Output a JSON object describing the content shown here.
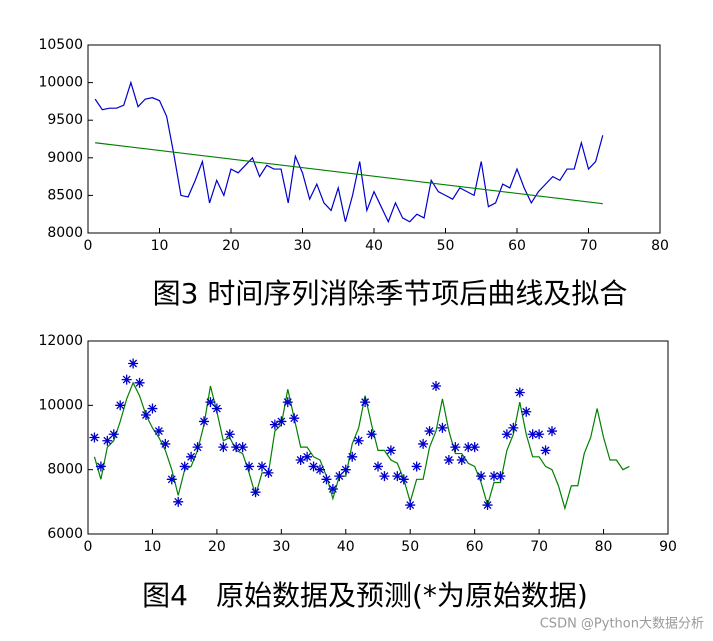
{
  "chart_data": [
    {
      "type": "line",
      "caption": "图3 时间序列消除季节项后曲线及拟合",
      "xlim": [
        0,
        80
      ],
      "ylim": [
        8000,
        10500
      ],
      "xticks": [
        0,
        10,
        20,
        30,
        40,
        50,
        60,
        70,
        80
      ],
      "yticks": [
        8000,
        8500,
        9000,
        9500,
        10000,
        10500
      ],
      "series": [
        {
          "color": "#0000cc",
          "marker": "none",
          "x": [
            1,
            2,
            3,
            4,
            5,
            6,
            7,
            8,
            9,
            10,
            11,
            12,
            13,
            14,
            15,
            16,
            17,
            18,
            19,
            20,
            21,
            22,
            23,
            24,
            25,
            26,
            27,
            28,
            29,
            30,
            31,
            32,
            33,
            34,
            35,
            36,
            37,
            38,
            39,
            40,
            41,
            42,
            43,
            44,
            45,
            46,
            47,
            48,
            49,
            50,
            51,
            52,
            53,
            54,
            55,
            56,
            57,
            58,
            59,
            60,
            61,
            62,
            63,
            64,
            65,
            66,
            67,
            68,
            69,
            70,
            71,
            72
          ],
          "values": [
            9780,
            9640,
            9660,
            9660,
            9700,
            10000,
            9680,
            9780,
            9800,
            9760,
            9550,
            9050,
            8500,
            8480,
            8700,
            8950,
            8400,
            8700,
            8500,
            8850,
            8800,
            8900,
            9000,
            8750,
            8900,
            8850,
            8850,
            8400,
            9020,
            8800,
            8450,
            8650,
            8400,
            8300,
            8600,
            8150,
            8500,
            8950,
            8300,
            8550,
            8350,
            8150,
            8400,
            8200,
            8150,
            8250,
            8200,
            8700,
            8550,
            8500,
            8450,
            8600,
            8550,
            8500,
            8950,
            8350,
            8400,
            8650,
            8600,
            8850,
            8600,
            8400,
            8550,
            8650,
            8750,
            8700,
            8850,
            8850,
            9200,
            8850,
            8950,
            9300
          ]
        },
        {
          "color": "#008000",
          "marker": "none",
          "x": [
            1,
            72
          ],
          "values": [
            9200,
            8390
          ]
        }
      ]
    },
    {
      "type": "line",
      "caption": "图4　原始数据及预测(*为原始数据)",
      "xlim": [
        0,
        90
      ],
      "ylim": [
        6000,
        12000
      ],
      "xticks": [
        0,
        10,
        20,
        30,
        40,
        50,
        60,
        70,
        80,
        90
      ],
      "yticks": [
        6000,
        8000,
        10000,
        12000
      ],
      "series": [
        {
          "color": "#008000",
          "marker": "none",
          "x": [
            1,
            2,
            3,
            4,
            5,
            6,
            7,
            8,
            9,
            10,
            11,
            12,
            13,
            14,
            15,
            16,
            17,
            18,
            19,
            20,
            21,
            22,
            23,
            24,
            25,
            26,
            27,
            28,
            29,
            30,
            31,
            32,
            33,
            34,
            35,
            36,
            37,
            38,
            39,
            40,
            41,
            42,
            43,
            44,
            45,
            46,
            47,
            48,
            49,
            50,
            51,
            52,
            53,
            54,
            55,
            56,
            57,
            58,
            59,
            60,
            61,
            62,
            63,
            64,
            65,
            66,
            67,
            68,
            69,
            70,
            71,
            72,
            73,
            74,
            75,
            76,
            77,
            78,
            79,
            80,
            81,
            82,
            83,
            84
          ],
          "values": [
            8400,
            7700,
            8700,
            8900,
            9500,
            10200,
            10700,
            10300,
            9700,
            9300,
            9000,
            8600,
            8000,
            7200,
            8000,
            8100,
            8600,
            9400,
            10600,
            9800,
            8900,
            9000,
            8600,
            8500,
            7900,
            7200,
            7900,
            7900,
            9200,
            9400,
            10500,
            9600,
            8700,
            8700,
            8400,
            8300,
            7800,
            7100,
            7800,
            7800,
            8800,
            9300,
            10300,
            9400,
            8600,
            8600,
            8300,
            8200,
            7700,
            7000,
            7700,
            7700,
            8700,
            9200,
            10200,
            9200,
            8500,
            8500,
            8200,
            8100,
            7600,
            6900,
            7600,
            7600,
            8600,
            9100,
            10100,
            9100,
            8400,
            8400,
            8100,
            8000,
            7500,
            6800,
            7500,
            7500,
            8500,
            9000,
            9900,
            9000,
            8300,
            8300,
            8000,
            8100
          ]
        },
        {
          "color": "#0000cc",
          "marker": "star",
          "x": [
            1,
            2,
            3,
            4,
            5,
            6,
            7,
            8,
            9,
            10,
            11,
            12,
            13,
            14,
            15,
            16,
            17,
            18,
            19,
            20,
            21,
            22,
            23,
            24,
            25,
            26,
            27,
            28,
            29,
            30,
            31,
            32,
            33,
            34,
            35,
            36,
            37,
            38,
            39,
            40,
            41,
            42,
            43,
            44,
            45,
            46,
            47,
            48,
            49,
            50,
            51,
            52,
            53,
            54,
            55,
            56,
            57,
            58,
            59,
            60,
            61,
            62,
            63,
            64,
            65,
            66,
            67,
            68,
            69,
            70,
            71,
            72
          ],
          "values": [
            9000,
            8100,
            8900,
            9100,
            10000,
            10800,
            11300,
            10700,
            9700,
            9900,
            9200,
            8800,
            7700,
            7000,
            8100,
            8400,
            8700,
            9500,
            10100,
            9900,
            8700,
            9100,
            8700,
            8700,
            8100,
            7300,
            8100,
            7900,
            9400,
            9500,
            10100,
            9600,
            8300,
            8400,
            8100,
            8000,
            7700,
            7400,
            7800,
            8000,
            8400,
            8900,
            10100,
            9100,
            8100,
            7800,
            8600,
            7800,
            7700,
            6900,
            8100,
            8800,
            9200,
            10600,
            9300,
            8300,
            8700,
            8300,
            8700,
            8700,
            7800,
            6900,
            7800,
            7800,
            9100,
            9300,
            10400,
            9800,
            9100,
            9100,
            8600,
            9200
          ]
        }
      ]
    }
  ],
  "watermark": "CSDN @Python大数据分析"
}
